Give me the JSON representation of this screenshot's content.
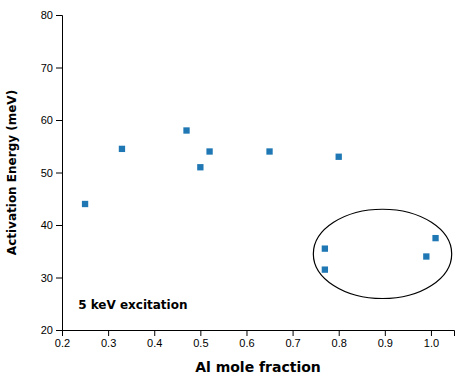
{
  "chart_data": {
    "type": "scatter",
    "x": [
      0.25,
      0.33,
      0.47,
      0.5,
      0.52,
      0.65,
      0.77,
      0.77,
      0.8,
      0.99,
      1.01
    ],
    "values": [
      44.0,
      54.5,
      58.0,
      51.0,
      54.0,
      54.0,
      35.5,
      31.5,
      53.0,
      34.0,
      37.5
    ],
    "xlabel": "Al mole fraction",
    "ylabel": "Activation Energy (meV)",
    "annotations": [
      {
        "text": "5 keV excitation",
        "x": 0.235,
        "y": 24.0
      }
    ],
    "ellipse": {
      "x": 0.895,
      "y": 34.5,
      "width": 0.3,
      "height": 17.0
    },
    "xlim": [
      0.2,
      1.05
    ],
    "ylim": [
      20,
      80
    ],
    "xticks": [
      0.2,
      0.3,
      0.4,
      0.5,
      0.6,
      0.7,
      0.8,
      0.9,
      {
        "value": 1.0,
        "label": "1.0"
      }
    ],
    "yticks": [
      20,
      30,
      40,
      50,
      60,
      70,
      80
    ],
    "marker": "square",
    "grid": false
  }
}
